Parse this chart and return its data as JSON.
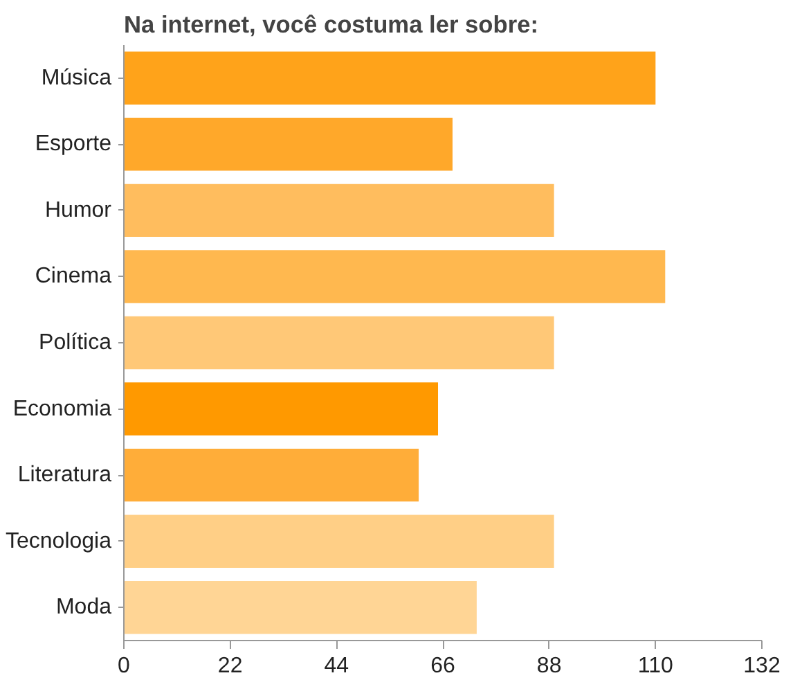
{
  "chart_data": {
    "type": "bar",
    "orientation": "horizontal",
    "title": "Na internet, você costuma ler sobre:",
    "categories": [
      "Música",
      "Esporte",
      "Humor",
      "Cinema",
      "Política",
      "Economia",
      "Literatura",
      "Tecnologia",
      "Moda"
    ],
    "values": [
      110,
      68,
      89,
      112,
      89,
      65,
      61,
      89,
      73
    ],
    "colors": [
      "#ffa31a",
      "#ffa82a",
      "#ffbd5e",
      "#ffb84f",
      "#ffc877",
      "#ff9900",
      "#ffad39",
      "#ffcf86",
      "#ffd595"
    ],
    "xlim": [
      0,
      132
    ],
    "xticks": [
      0,
      22,
      44,
      66,
      88,
      110,
      132
    ],
    "grid": false
  }
}
